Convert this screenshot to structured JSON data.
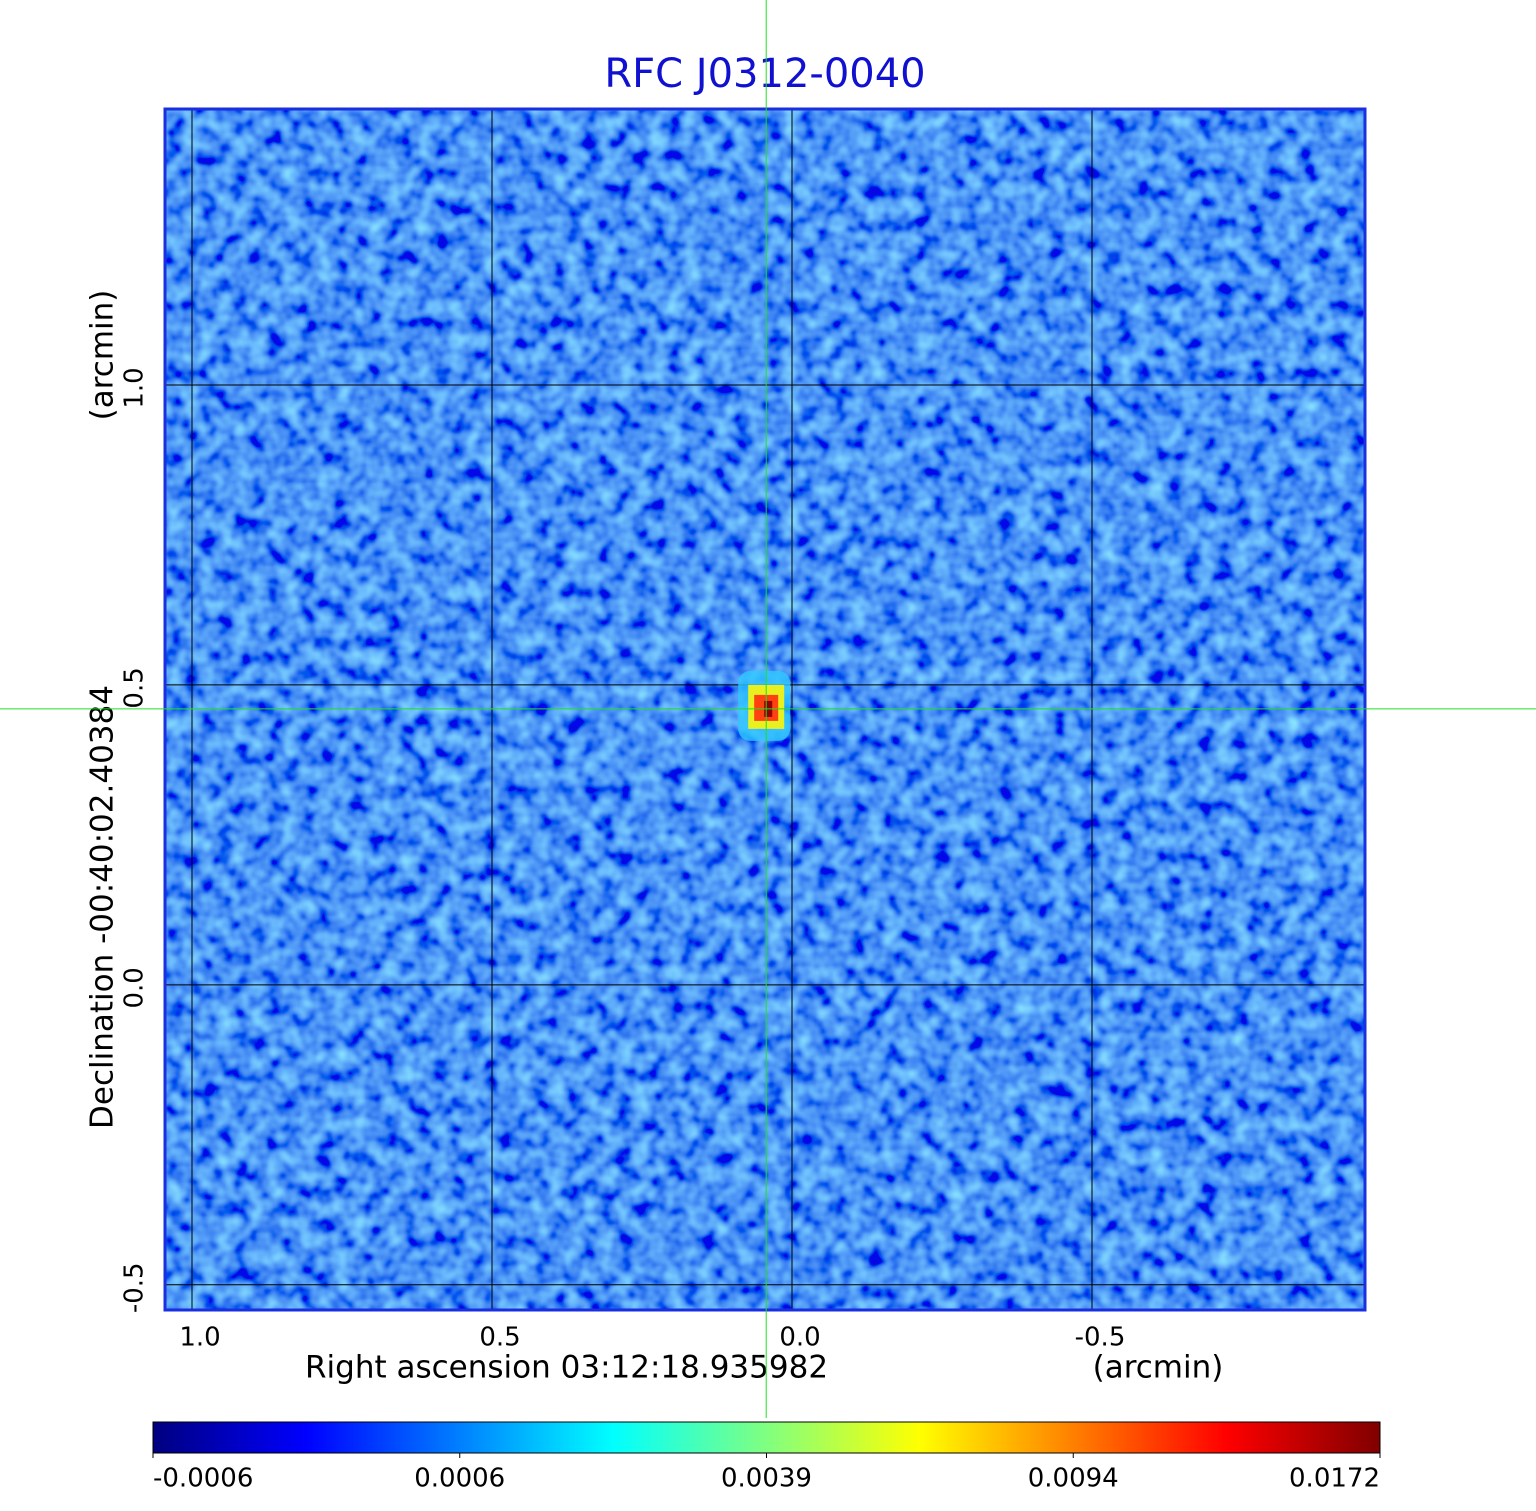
{
  "chart_data": {
    "type": "image",
    "title": "RFC J0312-0040",
    "x_label": "Right ascension  03:12:18.935982",
    "x_unit": "(arcmin)",
    "y_label": "Declination  -00:40:02.40384",
    "y_unit": "(arcmin)",
    "xlim": [
      1.045,
      -0.955
    ],
    "ylim": [
      -0.542,
      1.46
    ],
    "xticks": [
      {
        "value": 1,
        "label": "1.0"
      },
      {
        "value": 0.5,
        "label": "0.5"
      },
      {
        "value": 0,
        "label": "0.0"
      },
      {
        "value": -0.5,
        "label": "-0.5"
      }
    ],
    "yticks": [
      {
        "value": -0.5,
        "label": "-0.5"
      },
      {
        "value": 0,
        "label": "0.0"
      },
      {
        "value": 0.5,
        "label": "0.5"
      },
      {
        "value": 1,
        "label": "1.0"
      }
    ],
    "grid": true,
    "source": {
      "x": 0.043,
      "y": 0.46
    },
    "colormap": "jet",
    "colorbar_ticks": [
      -0.0006,
      0.0006,
      0.0039,
      0.0094,
      0.0172
    ]
  }
}
